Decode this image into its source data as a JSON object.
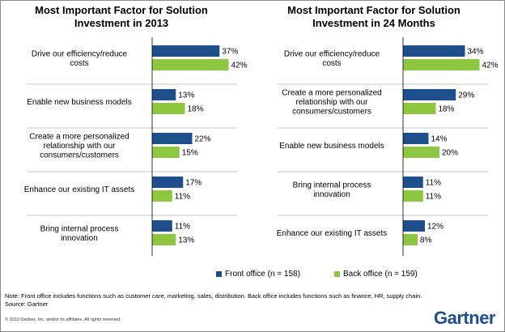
{
  "colors": {
    "front": "#1f4e8c",
    "back": "#8dc63f",
    "divider": "#c6c6c6"
  },
  "legend": {
    "front_label": "Front office (n = 158)",
    "back_label": "Back office (n = 159)"
  },
  "note": "Note: Front office includes functions such as customer care, marketing, sales, distribution. Back office includes functions such as finance, HR, supply chain.",
  "source": "Source: Gartner",
  "copyright": "© 2013 Gartner, Inc. and/or its affiliates. All rights reserved.",
  "logo": "Gartner",
  "chart_data": [
    {
      "type": "bar",
      "orientation": "horizontal",
      "title_line1": "Most Important Factor for Solution",
      "title_line2": "Investment in 2013",
      "categories": [
        [
          "Drive our efficiency/reduce",
          "costs"
        ],
        [
          "Enable new business models"
        ],
        [
          "Create a more personalized",
          "relationship with our",
          "consumers/customers"
        ],
        [
          "Enhance our existing IT assets"
        ],
        [
          "Bring internal process",
          "innovation"
        ]
      ],
      "series": [
        {
          "name": "Front office (n = 158)",
          "values": [
            37,
            13,
            22,
            17,
            11
          ]
        },
        {
          "name": "Back office (n = 159)",
          "values": [
            42,
            18,
            15,
            11,
            13
          ]
        }
      ],
      "unit": "%",
      "xlim": [
        0,
        50
      ]
    },
    {
      "type": "bar",
      "orientation": "horizontal",
      "title_line1": "Most Important Factor for Solution",
      "title_line2": "Investment in 24 Months",
      "categories": [
        [
          "Drive our efficiency/reduce",
          "costs"
        ],
        [
          "Create a more personalized",
          "relationship with our",
          "consumers/customers"
        ],
        [
          "Enable new business models"
        ],
        [
          "Bring internal process",
          "innovation"
        ],
        [
          "Enhance our existing IT assets"
        ]
      ],
      "series": [
        {
          "name": "Front office (n = 158)",
          "values": [
            34,
            29,
            14,
            11,
            12
          ]
        },
        {
          "name": "Back office (n = 159)",
          "values": [
            42,
            18,
            20,
            11,
            8
          ]
        }
      ],
      "unit": "%",
      "xlim": [
        0,
        50
      ]
    }
  ]
}
